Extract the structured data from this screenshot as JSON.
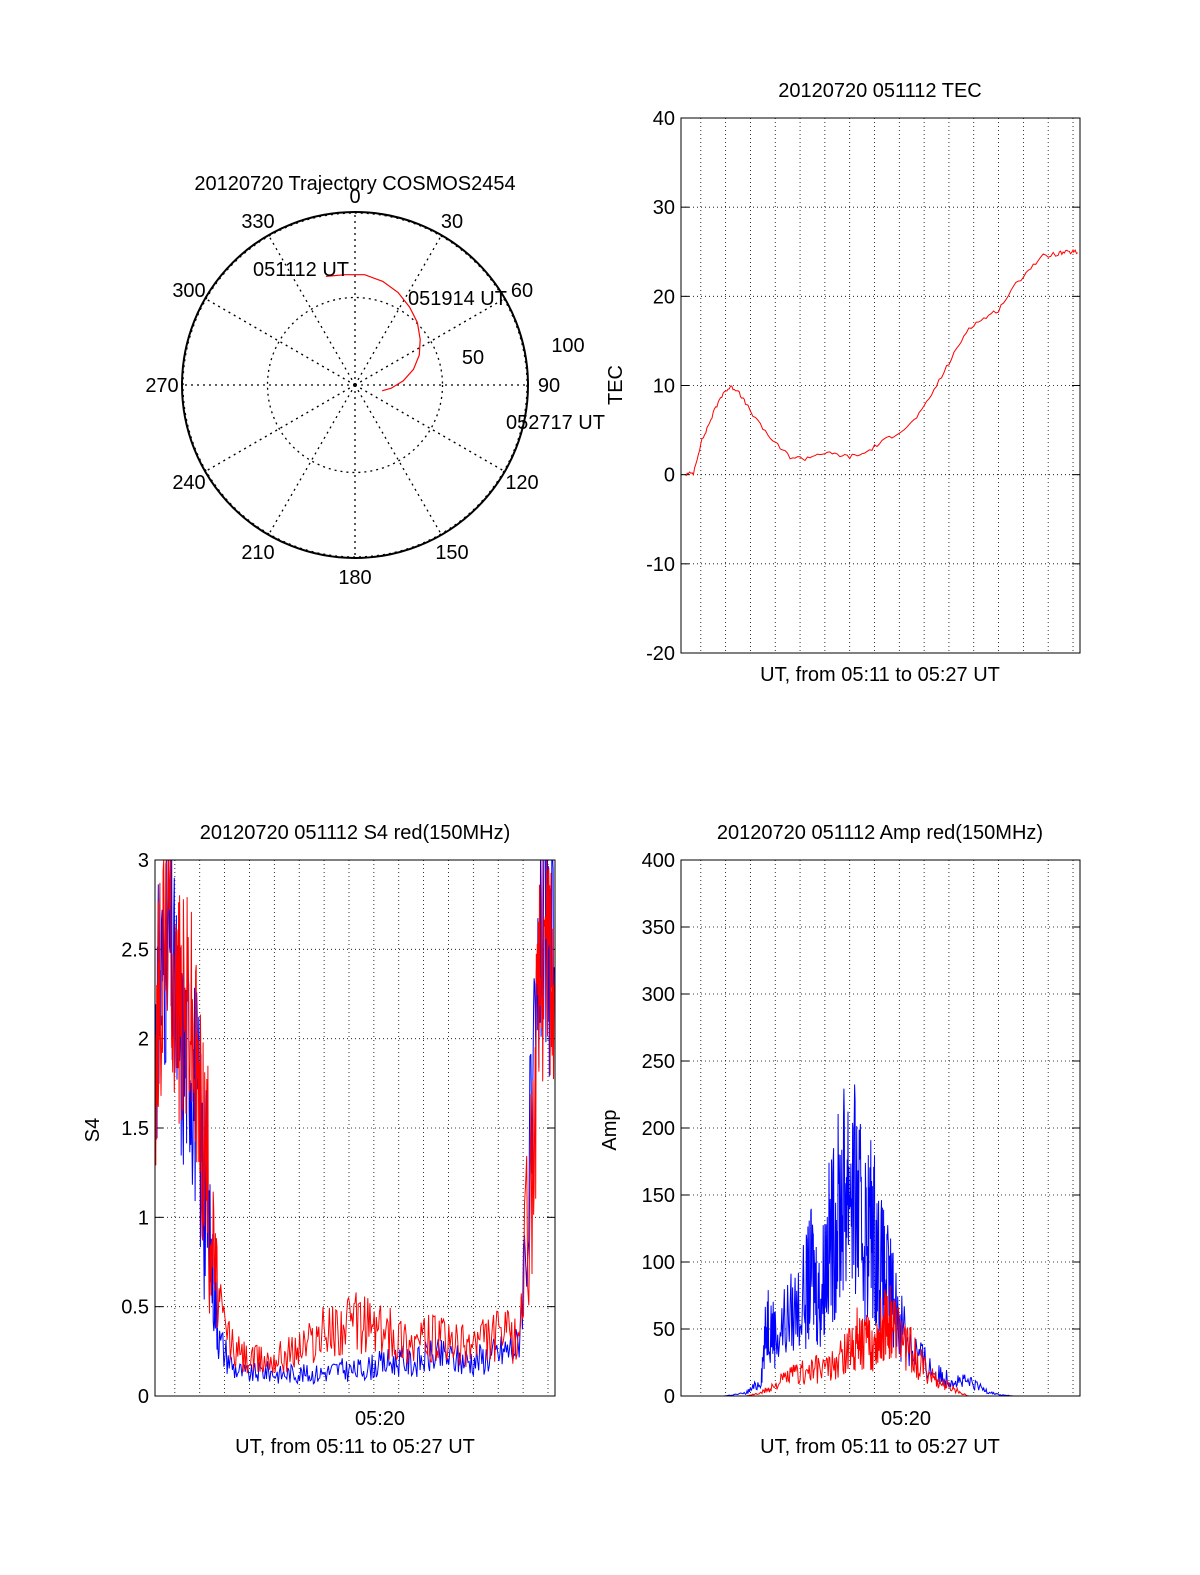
{
  "chart_data": [
    {
      "id": "polar",
      "type": "polar",
      "title": "20120720 Trajectory COSMOS2454",
      "azimuth_labels": [
        "0",
        "30",
        "60",
        "90",
        "120",
        "150",
        "180",
        "210",
        "240",
        "270",
        "300",
        "330"
      ],
      "elevation_ring_labels": [
        "50",
        "100"
      ],
      "elevation_rings": [
        0,
        50,
        100
      ],
      "trajectory": {
        "color": "#ff0000",
        "points": [
          {
            "az": 345,
            "el": 65
          },
          {
            "az": 355,
            "el": 64
          },
          {
            "az": 5,
            "el": 64
          },
          {
            "az": 15,
            "el": 62
          },
          {
            "az": 25,
            "el": 59
          },
          {
            "az": 35,
            "el": 55
          },
          {
            "az": 45,
            "el": 51
          },
          {
            "az": 55,
            "el": 46
          },
          {
            "az": 65,
            "el": 41
          },
          {
            "az": 75,
            "el": 35
          },
          {
            "az": 85,
            "el": 28
          },
          {
            "az": 95,
            "el": 21
          },
          {
            "az": 102,
            "el": 16
          }
        ]
      },
      "annotations": [
        "051112 UT",
        "051914 UT",
        "052717 UT"
      ]
    },
    {
      "id": "tec",
      "type": "line",
      "title": "20120720 051112 TEC",
      "xlabel": "UT, from 05:11 to 05:27 UT",
      "ylabel": "TEC",
      "xlim": [
        5.1867,
        5.4547
      ],
      "ylim": [
        -20,
        40
      ],
      "y_ticks": [
        "-20",
        "-10",
        "0",
        "10",
        "20",
        "30",
        "40"
      ],
      "grid": true,
      "series": [
        {
          "color": "#ff0000",
          "x": [
            5.19,
            5.195,
            5.2,
            5.205,
            5.21,
            5.215,
            5.22,
            5.225,
            5.23,
            5.24,
            5.25,
            5.26,
            5.27,
            5.28,
            5.29,
            5.3,
            5.31,
            5.32,
            5.33,
            5.34,
            5.35,
            5.36,
            5.37,
            5.38,
            5.39,
            5.4,
            5.41,
            5.42,
            5.43,
            5.44,
            5.445,
            5.45,
            5.453
          ],
          "values": [
            0,
            0.2,
            3.5,
            5.5,
            7.5,
            9.2,
            9.8,
            9.5,
            8.0,
            5.5,
            3.5,
            2.0,
            1.8,
            2.4,
            2.3,
            2.0,
            2.4,
            3.5,
            4.5,
            5.5,
            7.5,
            10.5,
            13.5,
            16.5,
            17.5,
            18.5,
            21.0,
            23.0,
            24.5,
            24.8,
            24.9,
            25.0,
            24.9
          ]
        }
      ]
    },
    {
      "id": "s4",
      "type": "line",
      "title": "20120720 051112 S4 red(150MHz)",
      "xlabel": "UT, from 05:11 to 05:27 UT",
      "ylabel": "S4",
      "x_tick_labels": [
        "05:20"
      ],
      "xlim": [
        5.1867,
        5.4547
      ],
      "ylim": [
        0,
        3
      ],
      "y_ticks": [
        "0",
        "0.5",
        "1",
        "1.5",
        "2",
        "2.5",
        "3"
      ],
      "grid": true,
      "series": [
        {
          "color": "#0000ff",
          "x": [
            5.187,
            5.19,
            5.195,
            5.2,
            5.205,
            5.21,
            5.215,
            5.22,
            5.225,
            5.23,
            5.24,
            5.25,
            5.26,
            5.27,
            5.28,
            5.29,
            5.3,
            5.31,
            5.32,
            5.33,
            5.34,
            5.35,
            5.36,
            5.37,
            5.38,
            5.39,
            5.4,
            5.41,
            5.42,
            5.43,
            5.44,
            5.445,
            5.45,
            5.454
          ],
          "values": [
            2.0,
            2.3,
            2.6,
            2.2,
            1.9,
            2.0,
            1.6,
            1.2,
            0.7,
            0.3,
            0.15,
            0.12,
            0.14,
            0.12,
            0.13,
            0.12,
            0.13,
            0.15,
            0.14,
            0.16,
            0.18,
            0.2,
            0.18,
            0.22,
            0.22,
            0.2,
            0.2,
            0.22,
            0.25,
            0.28,
            1.5,
            2.6,
            2.5,
            2.4
          ]
        },
        {
          "color": "#ff0000",
          "x": [
            5.187,
            5.19,
            5.195,
            5.2,
            5.205,
            5.21,
            5.215,
            5.22,
            5.225,
            5.23,
            5.24,
            5.25,
            5.26,
            5.27,
            5.28,
            5.29,
            5.3,
            5.31,
            5.32,
            5.33,
            5.34,
            5.35,
            5.36,
            5.37,
            5.38,
            5.39,
            5.4,
            5.41,
            5.42,
            5.43,
            5.44,
            5.445,
            5.45,
            5.454
          ],
          "values": [
            1.9,
            2.2,
            2.8,
            2.3,
            2.1,
            2.2,
            1.7,
            1.4,
            0.9,
            0.45,
            0.25,
            0.2,
            0.2,
            0.22,
            0.25,
            0.3,
            0.35,
            0.38,
            0.4,
            0.4,
            0.35,
            0.33,
            0.3,
            0.32,
            0.3,
            0.28,
            0.3,
            0.32,
            0.35,
            0.3,
            1.4,
            2.4,
            2.6,
            2.3
          ]
        }
      ]
    },
    {
      "id": "amp",
      "type": "line",
      "title": "20120720 051112 Amp red(150MHz)",
      "xlabel": "UT, from 05:11 to 05:27 UT",
      "ylabel": "Amp",
      "x_tick_labels": [
        "05:20"
      ],
      "xlim": [
        5.1867,
        5.4547
      ],
      "ylim": [
        0,
        400
      ],
      "y_ticks": [
        "0",
        "50",
        "100",
        "150",
        "200",
        "250",
        "300",
        "350",
        "400"
      ],
      "grid": true,
      "series": [
        {
          "color": "#0000ff",
          "x": [
            5.187,
            5.2,
            5.215,
            5.23,
            5.24,
            5.245,
            5.25,
            5.26,
            5.27,
            5.275,
            5.28,
            5.285,
            5.29,
            5.295,
            5.3,
            5.305,
            5.31,
            5.315,
            5.32,
            5.325,
            5.33,
            5.34,
            5.35,
            5.36,
            5.37,
            5.38,
            5.39,
            5.4,
            5.41,
            5.454
          ],
          "values": [
            0,
            0,
            0,
            2,
            10,
            60,
            45,
            60,
            75,
            95,
            70,
            110,
            125,
            150,
            170,
            140,
            120,
            130,
            100,
            85,
            70,
            40,
            25,
            15,
            12,
            10,
            5,
            1,
            0,
            0
          ]
        },
        {
          "color": "#ff0000",
          "x": [
            5.187,
            5.2,
            5.23,
            5.24,
            5.25,
            5.26,
            5.27,
            5.28,
            5.29,
            5.3,
            5.305,
            5.31,
            5.315,
            5.32,
            5.325,
            5.33,
            5.34,
            5.35,
            5.36,
            5.37,
            5.38,
            5.454
          ],
          "values": [
            0,
            0,
            0,
            2,
            8,
            15,
            18,
            20,
            22,
            35,
            45,
            40,
            38,
            45,
            60,
            50,
            35,
            20,
            10,
            5,
            0,
            0
          ]
        }
      ]
    }
  ]
}
